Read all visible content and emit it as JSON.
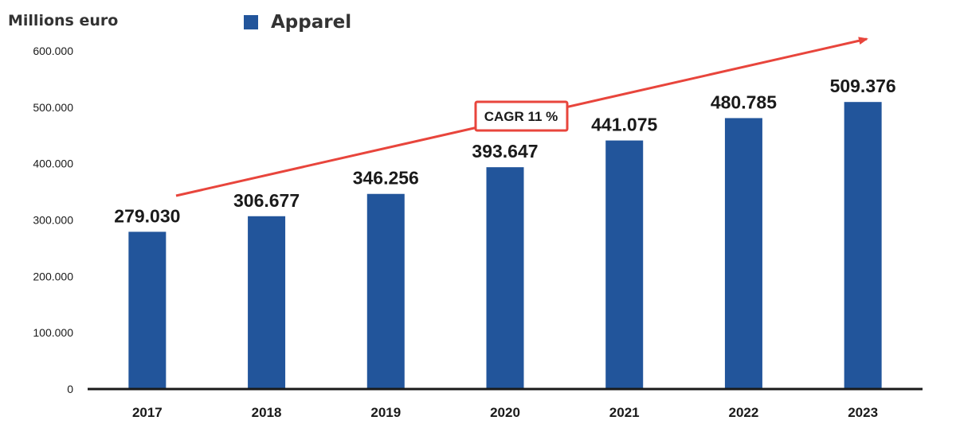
{
  "unit_label": "Millions euro",
  "legend": {
    "label": "Apparel"
  },
  "colors": {
    "bar": "#22559B",
    "arrow": "#E8453C",
    "axis": "#1a1a1a"
  },
  "chart_data": {
    "type": "bar",
    "categories": [
      "2017",
      "2018",
      "2019",
      "2020",
      "2021",
      "2022",
      "2023"
    ],
    "series": [
      {
        "name": "Apparel",
        "values": [
          279030,
          306677,
          346256,
          393647,
          441075,
          480785,
          509376
        ]
      }
    ],
    "data_labels": [
      "279.030",
      "306.677",
      "346.256",
      "393.647",
      "441.075",
      "480.785",
      "509.376"
    ],
    "y_ticks": [
      0,
      100000,
      200000,
      300000,
      400000,
      500000,
      600000
    ],
    "y_tick_labels": [
      "0",
      "100.000",
      "200.000",
      "300.000",
      "400.000",
      "500.000",
      "600.000"
    ],
    "ylim": [
      0,
      600000
    ],
    "ylabel": "Millions euro",
    "grid": false,
    "legend_position": "top",
    "annotation": {
      "text": "CAGR 11 %"
    }
  }
}
